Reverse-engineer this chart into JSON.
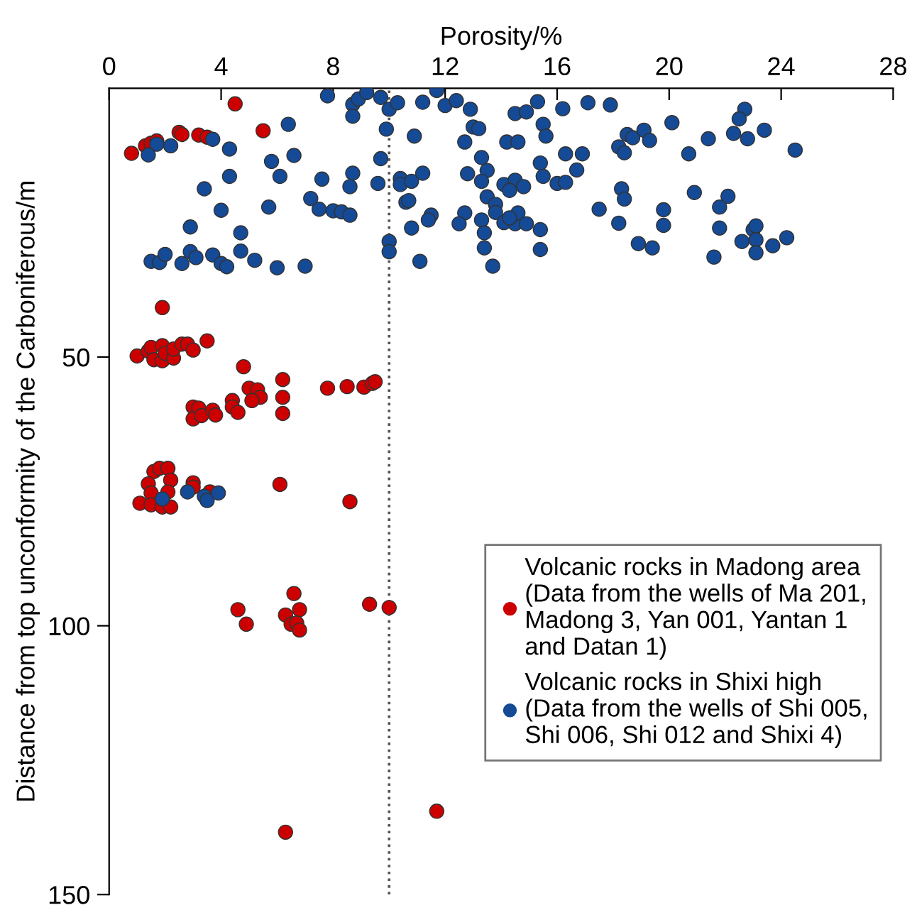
{
  "chart_data": {
    "type": "scatter",
    "xlabel": "Porosity/%",
    "ylabel": "Distance from top unconformity of the Carboniferous/m",
    "xlim": [
      0,
      28
    ],
    "xticks": [
      0,
      4,
      8,
      12,
      16,
      20,
      24,
      28
    ],
    "ylim": [
      150,
      0
    ],
    "yticks": [
      50,
      100,
      150
    ],
    "marker": "circle",
    "grid": false,
    "legend": "right",
    "ref_lines": [
      {
        "axis": "x",
        "value": 10,
        "line_style": "dotted",
        "color": "#555555"
      }
    ],
    "series": [
      {
        "name": "Volcanic rocks in Madong area\n(Data from the wells of Ma 201,\nMadong 3, Yan 001, Yantan 1\nand Datan 1)",
        "color": "#cc0000",
        "x": [
          4.5,
          5.5,
          0.8,
          1.3,
          1.5,
          1.7,
          2.5,
          2.6,
          3.2,
          3.5,
          1.9,
          1.0,
          1.4,
          1.5,
          1.6,
          1.9,
          1.9,
          2.0,
          2.3,
          2.3,
          2.6,
          2.8,
          3.0,
          3.5,
          4.8,
          5.0,
          5.3,
          5.4,
          5.1,
          6.2,
          6.2,
          6.2,
          7.8,
          8.5,
          9.1,
          9.4,
          9.5,
          3.0,
          3.2,
          3.0,
          3.3,
          3.7,
          3.8,
          4.4,
          4.4,
          4.6,
          1.6,
          1.8,
          2.1,
          2.2,
          1.4,
          1.5,
          1.1,
          1.5,
          1.9,
          2.2,
          2.1,
          3.0,
          3.0,
          3.6,
          6.1,
          8.6,
          4.6,
          4.9,
          6.6,
          6.8,
          6.3,
          6.5,
          6.7,
          6.8,
          9.3,
          10.0,
          6.3,
          11.7
        ],
        "values": [
          2.9,
          7.9,
          12.1,
          10.7,
          10.2,
          9.8,
          8.2,
          8.6,
          8.7,
          9.1,
          40.8,
          49.8,
          48.9,
          48.2,
          50.5,
          47.9,
          50.7,
          49.3,
          50.2,
          48.5,
          47.6,
          47.6,
          48.7,
          47.0,
          51.8,
          55.8,
          56.1,
          57.5,
          58.1,
          54.2,
          57.5,
          60.5,
          55.8,
          55.5,
          55.6,
          54.9,
          54.6,
          59.3,
          59.5,
          61.5,
          60.9,
          59.9,
          60.8,
          58.1,
          59.3,
          60.3,
          71.3,
          70.7,
          70.7,
          72.9,
          73.6,
          75.3,
          77.2,
          77.5,
          77.9,
          77.9,
          75.1,
          73.4,
          74.2,
          75.1,
          73.7,
          76.9,
          97.0,
          99.7,
          94.0,
          97.0,
          98.0,
          99.7,
          99.5,
          100.8,
          96.0,
          96.6,
          138.4,
          134.5
        ]
      },
      {
        "name": "Volcanic rocks in Shixi high\n(Data from the wells of Shi 005,\nShi 006, Shi 012 and Shixi 4)",
        "color": "#154a96",
        "x": [
          7.8,
          8.7,
          8.9,
          9.2,
          9.7,
          10.0,
          10.3,
          8.7,
          11.2,
          11.7,
          12.0,
          12.4,
          12.9,
          6.4,
          9.9,
          10.9,
          12.7,
          13.0,
          1.7,
          1.4,
          2.2,
          3.7,
          4.3,
          5.8,
          6.6,
          9.7,
          13.3,
          4.3,
          3.4,
          6.1,
          7.6,
          8.7,
          8.6,
          9.6,
          10.4,
          10.4,
          10.8,
          11.2,
          12.8,
          13.5,
          13.3,
          14.1,
          7.2,
          7.5,
          8.0,
          8.3,
          8.6,
          5.7,
          4.0,
          10.6,
          10.7,
          13.5,
          13.8,
          13.8,
          12.7,
          12.5,
          11.5,
          11.4,
          10.8,
          13.3,
          14.1,
          2.9,
          4.7,
          13.4,
          13.4,
          10.0,
          10.0,
          1.5,
          1.8,
          2.0,
          2.6,
          2.9,
          3.1,
          3.7,
          4.0,
          4.2,
          4.7,
          5.2,
          6.0,
          7.0,
          11.1,
          13.7,
          16.2,
          17.1,
          17.9,
          15.3,
          14.5,
          14.9,
          20.1,
          22.7,
          22.5,
          22.3,
          23.4,
          22.8,
          21.4,
          24.5,
          20.7,
          18.5,
          18.7,
          19.1,
          19.3,
          18.2,
          18.4,
          16.3,
          16.9,
          15.4,
          15.5,
          15.6,
          13.2,
          14.2,
          14.6,
          16.7,
          14.5,
          14.3,
          14.8,
          15.5,
          16.0,
          16.3,
          14.5,
          14.6,
          14.9,
          14.3,
          15.4,
          15.4,
          17.5,
          18.3,
          18.4,
          18.2,
          18.9,
          19.4,
          19.8,
          19.8,
          20.9,
          22.1,
          21.8,
          21.8,
          21.6,
          22.6,
          23.0,
          23.1,
          23.1,
          23.1,
          23.7,
          24.2,
          1.9,
          2.8,
          3.4,
          3.5,
          3.9
        ],
        "values": [
          1.4,
          3.0,
          2.0,
          0.8,
          1.7,
          3.9,
          2.7,
          5.2,
          2.6,
          0.4,
          3.2,
          2.3,
          3.9,
          6.7,
          7.6,
          8.9,
          10.0,
          7.2,
          10.4,
          12.4,
          10.7,
          9.5,
          11.3,
          13.6,
          12.5,
          13.1,
          12.9,
          16.4,
          18.7,
          16.4,
          16.9,
          15.8,
          18.3,
          17.7,
          16.8,
          17.9,
          17.3,
          15.8,
          15.9,
          15.3,
          17.3,
          17.9,
          20.5,
          22.5,
          22.8,
          23.0,
          23.6,
          22.1,
          22.7,
          21.2,
          20.9,
          20.2,
          21.6,
          23.1,
          23.2,
          25.2,
          23.6,
          24.5,
          26.0,
          24.5,
          25.0,
          25.8,
          26.9,
          26.9,
          29.7,
          28.5,
          30.4,
          32.2,
          32.4,
          30.9,
          32.6,
          30.4,
          31.5,
          31.0,
          32.6,
          33.2,
          30.3,
          32.0,
          33.4,
          33.1,
          32.2,
          33.1,
          3.8,
          2.7,
          3.1,
          2.5,
          4.7,
          4.4,
          6.4,
          3.9,
          5.7,
          8.4,
          7.8,
          9.4,
          9.4,
          11.5,
          12.2,
          8.6,
          9.2,
          7.8,
          9.7,
          10.9,
          12.0,
          12.2,
          12.2,
          13.9,
          6.7,
          8.9,
          7.5,
          10.0,
          10.0,
          15.2,
          17.1,
          19.0,
          18.3,
          16.4,
          17.7,
          17.5,
          25.2,
          23.2,
          25.2,
          24.1,
          26.3,
          30.0,
          22.5,
          18.7,
          20.6,
          25.1,
          28.9,
          29.7,
          22.6,
          25.5,
          19.4,
          20.1,
          22.1,
          26.0,
          31.4,
          28.5,
          26.3,
          25.6,
          28.2,
          30.6,
          29.3,
          27.8,
          76.4,
          75.1,
          75.9,
          76.7,
          75.3
        ]
      }
    ]
  }
}
